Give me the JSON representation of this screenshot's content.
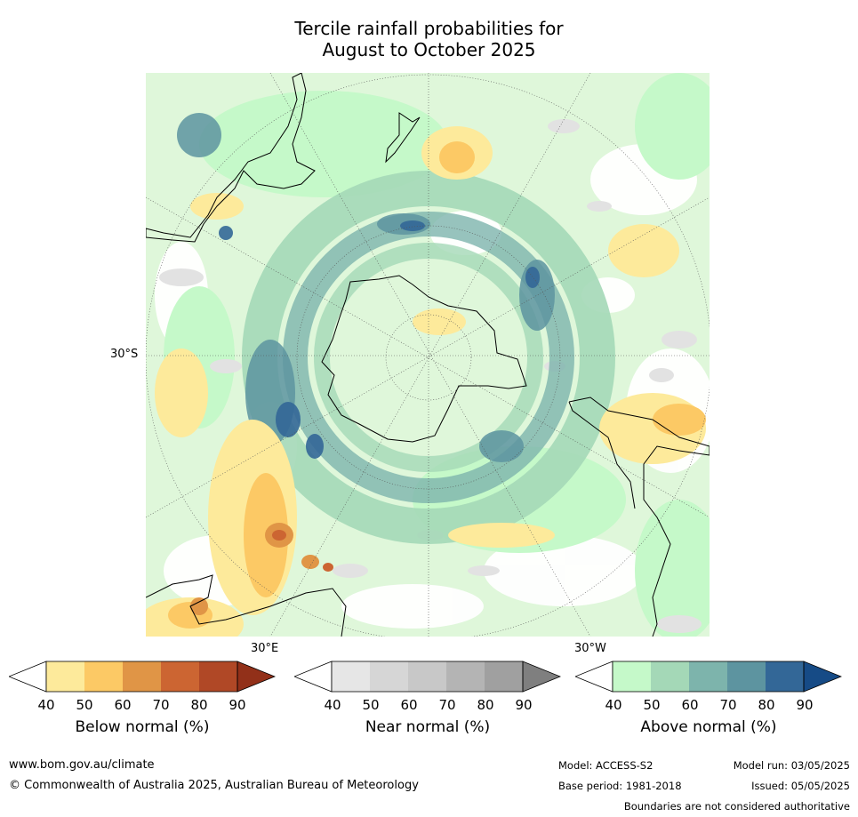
{
  "title_line1": "Tercile rainfall probabilities for",
  "title_line2": "August to October 2025",
  "map": {
    "lat_label": "30°S",
    "lon_label_east": "30°E",
    "lon_label_west": "30°W"
  },
  "legends": [
    {
      "label": "Below normal (%)",
      "ticks": [
        "40",
        "50",
        "60",
        "70",
        "80",
        "90"
      ],
      "colors": [
        "#ffffff",
        "#fdea9b",
        "#fcc965",
        "#e09546",
        "#cc6532",
        "#b04826",
        "#923019"
      ]
    },
    {
      "label": "Near normal (%)",
      "ticks": [
        "40",
        "50",
        "60",
        "70",
        "80",
        "90"
      ],
      "colors": [
        "#ffffff",
        "#e6e6e6",
        "#d6d6d6",
        "#c8c8c8",
        "#b4b4b4",
        "#a0a0a0",
        "#7f7f7f"
      ]
    },
    {
      "label": "Above normal (%)",
      "ticks": [
        "40",
        "50",
        "60",
        "70",
        "80",
        "90"
      ],
      "colors": [
        "#ffffff",
        "#c5f9c9",
        "#a4d8b7",
        "#7db4ac",
        "#5d94a0",
        "#336797",
        "#164b86"
      ]
    }
  ],
  "footer": {
    "website": "www.bom.gov.au/climate",
    "copyright": "© Commonwealth of Australia 2025, Australian Bureau of Meteorology",
    "model": "Model: ACCESS-S2",
    "base_period": "Base period: 1981-2018",
    "model_run": "Model run: 03/05/2025",
    "issued": "Issued: 05/05/2025",
    "boundaries": "Boundaries are not considered authoritative"
  }
}
